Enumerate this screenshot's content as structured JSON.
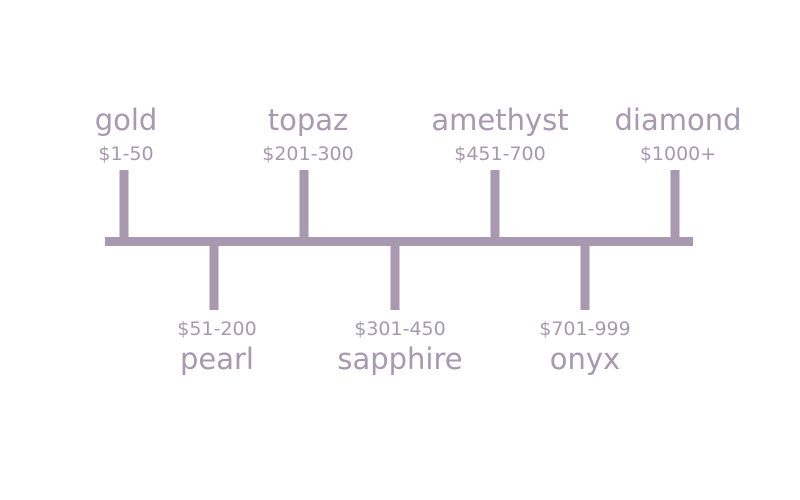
{
  "colors": {
    "line": "#a898b0",
    "text": "#a898b0",
    "background": "#ffffff"
  },
  "timeline": {
    "tiers": [
      {
        "name": "gold",
        "range": "$1-50",
        "side": "above"
      },
      {
        "name": "pearl",
        "range": "$51-200",
        "side": "below"
      },
      {
        "name": "topaz",
        "range": "$201-300",
        "side": "above"
      },
      {
        "name": "sapphire",
        "range": "$301-450",
        "side": "below"
      },
      {
        "name": "amethyst",
        "range": "$451-700",
        "side": "above"
      },
      {
        "name": "onyx",
        "range": "$701-999",
        "side": "below"
      },
      {
        "name": "diamond",
        "range": "$1000+",
        "side": "above"
      }
    ]
  }
}
